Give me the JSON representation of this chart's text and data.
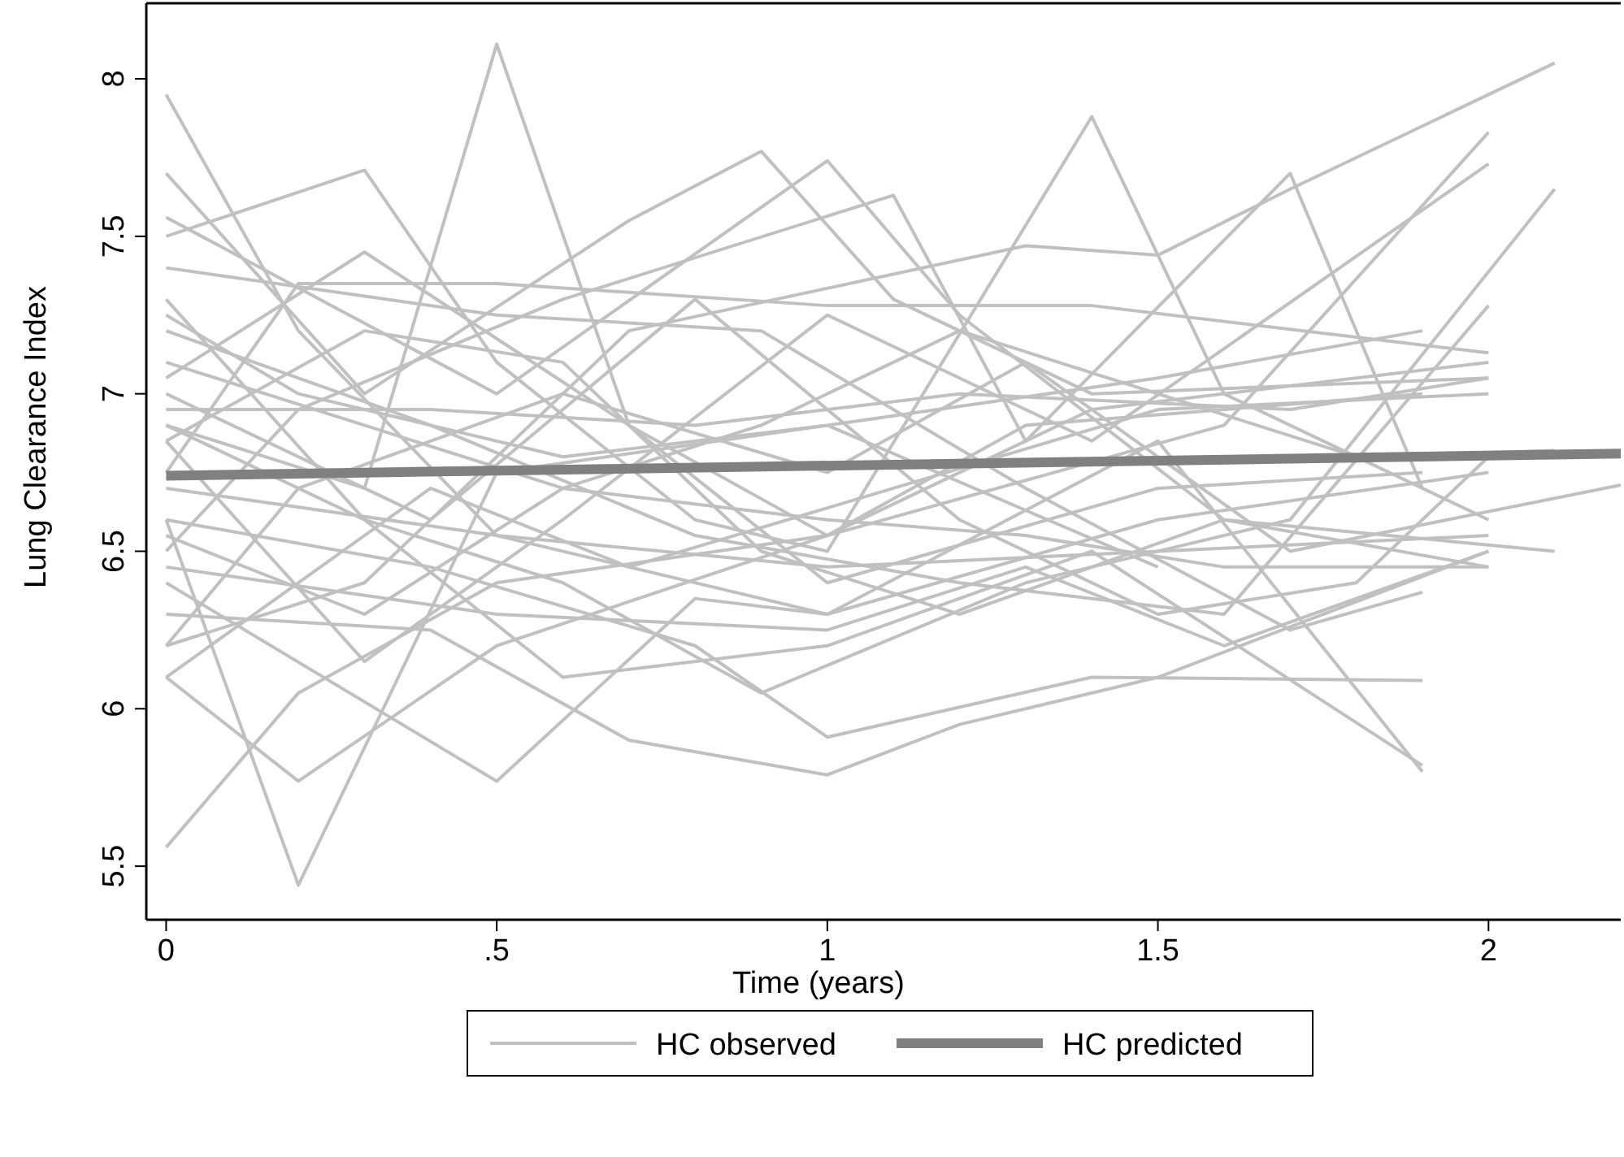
{
  "chart_data": {
    "type": "line",
    "xlabel": "Time (years)",
    "ylabel": "Lung Clearance Index",
    "xlim": [
      -0.03,
      2.2
    ],
    "ylim": [
      5.33,
      8.24
    ],
    "xticks": [
      0,
      {
        "value": 0.5,
        "label": ".5"
      },
      1,
      1.5,
      2
    ],
    "yticks": [
      5.5,
      6,
      6.5,
      7,
      7.5,
      8
    ],
    "grid": false,
    "legend": "bottom",
    "line_style": "solid",
    "marker": "none",
    "series": [
      {
        "name": "HC observed",
        "color": "#c0c0c0",
        "x": [
          0,
          0.2,
          0.5,
          1,
          1.5,
          2
        ],
        "values": [
          7.95,
          7.2,
          6.55,
          6.3,
          6.6,
          6.75
        ]
      },
      {
        "color": "#c0c0c0",
        "x": [
          0,
          0.2,
          0.5,
          1,
          1.5
        ],
        "values": [
          6.6,
          5.44,
          6.75,
          6.9,
          6.45
        ]
      },
      {
        "color": "#c0c0c0",
        "x": [
          0,
          0.2,
          0.5,
          1,
          1.4,
          2
        ],
        "values": [
          5.56,
          6.05,
          6.4,
          6.55,
          6.95,
          7.1
        ]
      },
      {
        "color": "#c0c0c0",
        "x": [
          0,
          0.3,
          0.5,
          0.7,
          1,
          1.5,
          1.9
        ],
        "values": [
          6.9,
          6.7,
          8.11,
          6.9,
          6.4,
          6.7,
          6.75
        ]
      },
      {
        "color": "#c0c0c0",
        "x": [
          0,
          0.3,
          0.7,
          0.9,
          1.1,
          1.4,
          2
        ],
        "values": [
          7.7,
          7.0,
          7.55,
          7.77,
          7.3,
          7.0,
          7.05
        ]
      },
      {
        "color": "#c0c0c0",
        "x": [
          0,
          0.5,
          1,
          1.2,
          1.6,
          2.1
        ],
        "values": [
          7.56,
          7.0,
          7.74,
          7.25,
          6.6,
          6.5
        ]
      },
      {
        "color": "#c0c0c0",
        "x": [
          0,
          0.3,
          0.5,
          0.8,
          1,
          1.4,
          1.6,
          2
        ],
        "values": [
          7.5,
          7.71,
          7.1,
          6.6,
          6.5,
          7.88,
          7.0,
          6.6
        ]
      },
      {
        "color": "#c0c0c0",
        "x": [
          0,
          0.2,
          0.6,
          1.1,
          1.3,
          1.7,
          1.9
        ],
        "values": [
          6.5,
          6.95,
          7.3,
          7.63,
          6.85,
          7.7,
          6.7
        ]
      },
      {
        "color": "#c0c0c0",
        "x": [
          0,
          0.3,
          0.7,
          1.3,
          1.5,
          1.7,
          2.1
        ],
        "values": [
          6.2,
          6.4,
          7.2,
          7.47,
          7.44,
          7.65,
          8.05
        ]
      },
      {
        "color": "#c0c0c0",
        "x": [
          0,
          0.2,
          0.5,
          1,
          1.6,
          2
        ],
        "values": [
          6.1,
          5.77,
          6.2,
          6.55,
          6.9,
          7.83
        ]
      },
      {
        "color": "#c0c0c0",
        "x": [
          0,
          0.5,
          0.8,
          1,
          1.5,
          1.9
        ],
        "values": [
          6.4,
          5.77,
          6.35,
          6.3,
          6.85,
          5.8
        ]
      },
      {
        "color": "#c0c0c0",
        "x": [
          0,
          0.4,
          0.7,
          1,
          1.2,
          1.5,
          2
        ],
        "values": [
          6.3,
          6.25,
          5.9,
          5.79,
          5.95,
          6.1,
          6.5
        ]
      },
      {
        "color": "#c0c0c0",
        "x": [
          0,
          0.4,
          0.8,
          1,
          1.4,
          1.9
        ],
        "values": [
          6.6,
          6.45,
          6.2,
          5.91,
          6.1,
          6.09
        ]
      },
      {
        "color": "#c0c0c0",
        "x": [
          0,
          0.3,
          0.6,
          0.9,
          1.3,
          1.7,
          2.1
        ],
        "values": [
          6.9,
          6.6,
          6.4,
          6.05,
          6.4,
          6.6,
          7.65
        ]
      },
      {
        "color": "#c0c0c0",
        "x": [
          0,
          0.3,
          0.6,
          1,
          1.4,
          1.9
        ],
        "values": [
          7.3,
          6.6,
          6.1,
          6.2,
          6.5,
          5.82
        ]
      },
      {
        "color": "#c0c0c0",
        "x": [
          0,
          0.4,
          0.8,
          1.2,
          1.6,
          2
        ],
        "values": [
          7.2,
          6.9,
          6.55,
          6.4,
          6.3,
          7.28
        ]
      },
      {
        "color": "#c0c0c0",
        "x": [
          0,
          0.3,
          0.7,
          1,
          1.3,
          1.9
        ],
        "values": [
          7.05,
          7.45,
          6.9,
          6.55,
          6.9,
          7.0
        ]
      },
      {
        "color": "#c0c0c0",
        "x": [
          0,
          0.2,
          0.5,
          1,
          1.4,
          2
        ],
        "values": [
          6.75,
          7.35,
          7.35,
          7.28,
          7.28,
          7.13
        ]
      },
      {
        "color": "#c0c0c0",
        "x": [
          0,
          0.3,
          0.6,
          0.9,
          1.2,
          1.6,
          2
        ],
        "values": [
          6.85,
          7.2,
          7.1,
          6.5,
          6.3,
          6.6,
          6.45
        ]
      },
      {
        "color": "#c0c0c0",
        "x": [
          0,
          0.4,
          0.8,
          1.2,
          1.5,
          1.8,
          2
        ],
        "values": [
          7.0,
          6.6,
          7.3,
          6.6,
          6.3,
          6.4,
          6.8
        ]
      },
      {
        "color": "#c0c0c0",
        "x": [
          0,
          0.5,
          1,
          1.5,
          2
        ],
        "values": [
          6.7,
          6.55,
          6.45,
          6.5,
          6.55
        ]
      },
      {
        "color": "#c0c0c0",
        "x": [
          0,
          0.3,
          0.6,
          1,
          1.3,
          1.6,
          2
        ],
        "values": [
          7.1,
          6.9,
          6.7,
          6.6,
          6.55,
          6.45,
          6.45
        ]
      },
      {
        "color": "#c0c0c0",
        "x": [
          0,
          0.4,
          0.8,
          1.2,
          1.7,
          2
        ],
        "values": [
          6.95,
          6.95,
          6.9,
          7.0,
          6.95,
          7.05
        ]
      },
      {
        "color": "#c0c0c0",
        "x": [
          0,
          0.3,
          0.6,
          0.9,
          1.2,
          1.8,
          2.1
        ],
        "values": [
          6.55,
          6.3,
          6.7,
          6.9,
          7.2,
          6.8,
          6.82
        ]
      },
      {
        "color": "#c0c0c0",
        "x": [
          0,
          0.2,
          0.6,
          1,
          1.3,
          1.7,
          2.2
        ],
        "values": [
          6.2,
          6.7,
          7.0,
          6.75,
          7.1,
          6.5,
          6.71
        ]
      },
      {
        "color": "#c0c0c0",
        "x": [
          0,
          0.5,
          0.9,
          1.3,
          1.7,
          1.9
        ],
        "values": [
          7.4,
          7.25,
          7.2,
          6.7,
          6.25,
          6.37
        ]
      },
      {
        "color": "#c0c0c0",
        "x": [
          0,
          0.3,
          0.6,
          1,
          1.4,
          2
        ],
        "values": [
          6.85,
          6.15,
          6.6,
          7.25,
          6.85,
          7.73
        ]
      },
      {
        "color": "#c0c0c0",
        "x": [
          0,
          0.2,
          0.6,
          1,
          1.5,
          1.9
        ],
        "values": [
          7.25,
          7.0,
          6.8,
          6.9,
          7.05,
          7.2
        ]
      },
      {
        "color": "#c0c0c0",
        "x": [
          0,
          0.5,
          1,
          1.3,
          1.6,
          2
        ],
        "values": [
          6.45,
          6.3,
          6.25,
          6.45,
          6.2,
          6.5
        ]
      },
      {
        "color": "#c0c0c0",
        "x": [
          0,
          0.4,
          0.7,
          1.1,
          1.5,
          2
        ],
        "values": [
          6.1,
          6.7,
          6.45,
          6.7,
          6.95,
          7.0
        ]
      },
      {
        "name": "HC predicted",
        "color": "#808080",
        "x": [
          0,
          2.2
        ],
        "values": [
          6.74,
          6.81
        ]
      }
    ]
  }
}
